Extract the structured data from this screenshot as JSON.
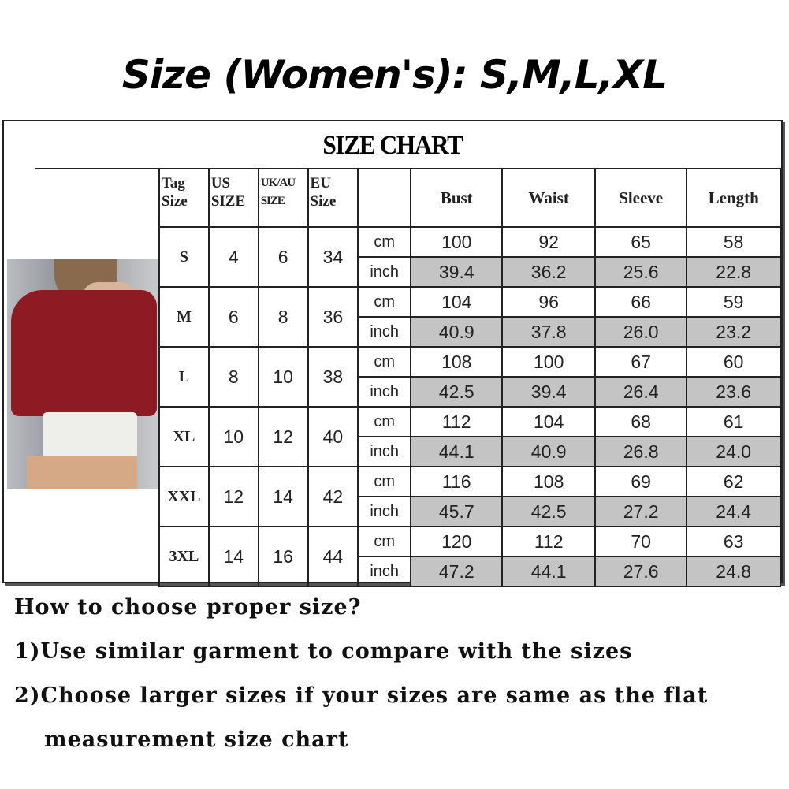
{
  "title": "Size (Women's): S,M,L,XL",
  "chart": {
    "heading": "SIZE CHART",
    "columns": {
      "tag": [
        "Tag",
        "Size"
      ],
      "us": [
        "US",
        "SIZE"
      ],
      "uk": [
        "UK/AU",
        "SIZE"
      ],
      "eu": [
        "EU",
        "Size"
      ],
      "measures": [
        "Bust",
        "Waist",
        "Sleeve",
        "Length"
      ]
    },
    "units": {
      "cm": "cm",
      "inch": "inch"
    },
    "rows": [
      {
        "tag": "S",
        "us": "4",
        "uk": "6",
        "eu": "34",
        "cm": [
          "100",
          "92",
          "65",
          "58"
        ],
        "inch": [
          "39.4",
          "36.2",
          "25.6",
          "22.8"
        ]
      },
      {
        "tag": "M",
        "us": "6",
        "uk": "8",
        "eu": "36",
        "cm": [
          "104",
          "96",
          "66",
          "59"
        ],
        "inch": [
          "40.9",
          "37.8",
          "26.0",
          "23.2"
        ]
      },
      {
        "tag": "L",
        "us": "8",
        "uk": "10",
        "eu": "38",
        "cm": [
          "108",
          "100",
          "67",
          "60"
        ],
        "inch": [
          "42.5",
          "39.4",
          "26.4",
          "23.6"
        ]
      },
      {
        "tag": "XL",
        "us": "10",
        "uk": "12",
        "eu": "40",
        "cm": [
          "112",
          "104",
          "68",
          "61"
        ],
        "inch": [
          "44.1",
          "40.9",
          "26.8",
          "24.0"
        ]
      },
      {
        "tag": "XXL",
        "us": "12",
        "uk": "14",
        "eu": "42",
        "cm": [
          "116",
          "108",
          "69",
          "62"
        ],
        "inch": [
          "45.7",
          "42.5",
          "27.2",
          "24.4"
        ]
      },
      {
        "tag": "3XL",
        "us": "14",
        "uk": "16",
        "eu": "44",
        "cm": [
          "120",
          "112",
          "70",
          "63"
        ],
        "inch": [
          "47.2",
          "44.1",
          "27.6",
          "24.8"
        ]
      }
    ],
    "colors": {
      "inch_row_bg": "#c4c4c4",
      "sweater": "#8e1a24"
    }
  },
  "notes": {
    "question": "How to choose proper size?",
    "tip1": "1)Use similar garment to compare with the sizes",
    "tip2_line1": "2)Choose larger sizes if your sizes are same as the flat",
    "tip2_line2": "measurement size chart"
  }
}
